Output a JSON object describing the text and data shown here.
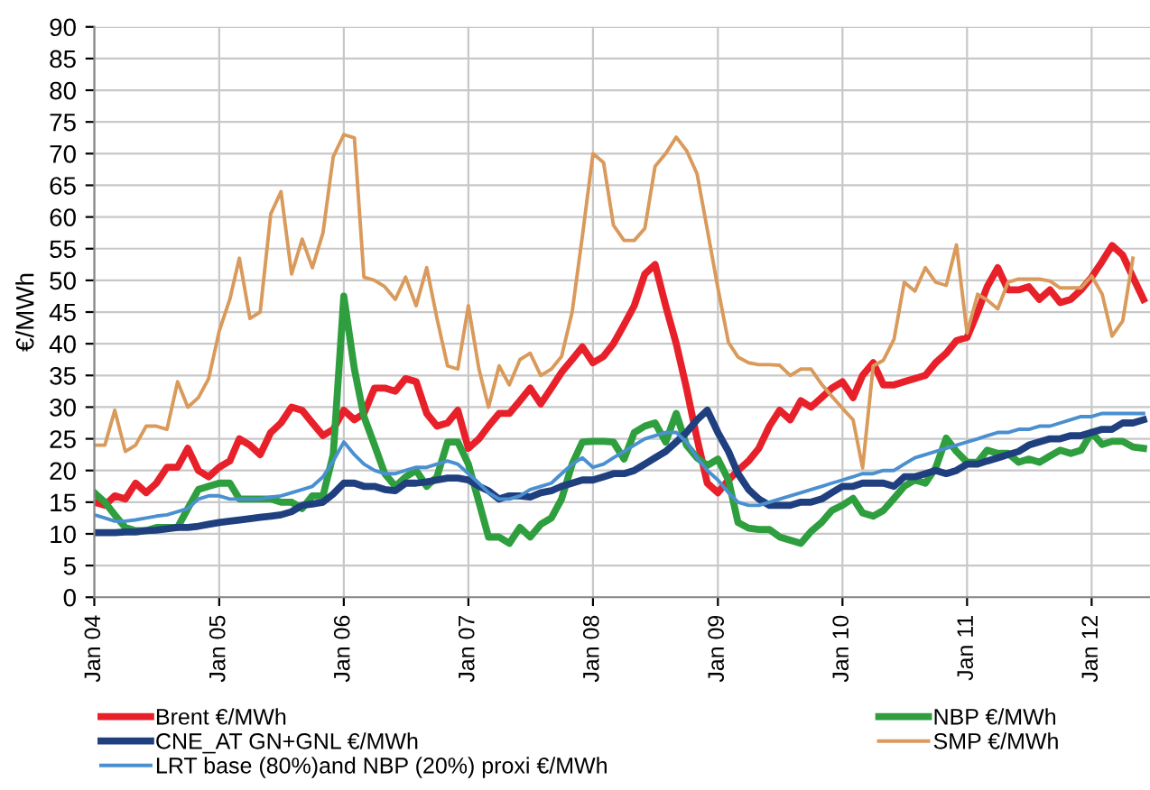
{
  "chart_data": {
    "type": "line",
    "ylabel": "€/MWh",
    "x": [
      "2004-01",
      "2004-02",
      "2004-03",
      "2004-04",
      "2004-05",
      "2004-06",
      "2004-07",
      "2004-08",
      "2004-09",
      "2004-10",
      "2004-11",
      "2004-12",
      "2005-01",
      "2005-02",
      "2005-03",
      "2005-04",
      "2005-05",
      "2005-06",
      "2005-07",
      "2005-08",
      "2005-09",
      "2005-10",
      "2005-11",
      "2005-12",
      "2006-01",
      "2006-02",
      "2006-03",
      "2006-04",
      "2006-05",
      "2006-06",
      "2006-07",
      "2006-08",
      "2006-09",
      "2006-10",
      "2006-11",
      "2006-12",
      "2007-01",
      "2007-02",
      "2007-03",
      "2007-04",
      "2007-05",
      "2007-06",
      "2007-07",
      "2007-08",
      "2007-09",
      "2007-10",
      "2007-11",
      "2007-12",
      "2008-01",
      "2008-02",
      "2008-03",
      "2008-04",
      "2008-05",
      "2008-06",
      "2008-07",
      "2008-08",
      "2008-09",
      "2008-10",
      "2008-11",
      "2008-12",
      "2009-01",
      "2009-02",
      "2009-03",
      "2009-04",
      "2009-05",
      "2009-06",
      "2009-07",
      "2009-08",
      "2009-09",
      "2009-10",
      "2009-11",
      "2009-12",
      "2010-01",
      "2010-02",
      "2010-03",
      "2010-04",
      "2010-05",
      "2010-06",
      "2010-07",
      "2010-08",
      "2010-09",
      "2010-10",
      "2010-11",
      "2010-12",
      "2011-01",
      "2011-02",
      "2011-03",
      "2011-04",
      "2011-05",
      "2011-06",
      "2011-07",
      "2011-08",
      "2011-09",
      "2011-10",
      "2011-11",
      "2011-12",
      "2012-01",
      "2012-02",
      "2012-03",
      "2012-04",
      "2012-05",
      "2012-06"
    ],
    "series": [
      {
        "name": "Brent €/MWh",
        "color": "#e8202a",
        "values": [
          15,
          14.5,
          16,
          15.5,
          18,
          16.5,
          18,
          20.5,
          20.5,
          23.5,
          20,
          19,
          20.5,
          21.5,
          25,
          24,
          22.5,
          26,
          27.5,
          30,
          29.5,
          27.5,
          25.5,
          26.5,
          29.5,
          28,
          29,
          33,
          33,
          32.5,
          34.5,
          34,
          29,
          27,
          27.5,
          29.5,
          23.5,
          25,
          27,
          29,
          29,
          31,
          33,
          30.5,
          33,
          35.5,
          37.5,
          39.5,
          37,
          38,
          40,
          43,
          46,
          51,
          52.5,
          46,
          40,
          33,
          25,
          18,
          16.5,
          18.5,
          20,
          21.5,
          23.5,
          27,
          29.5,
          28,
          31,
          30,
          31.5,
          33,
          34,
          31.5,
          35,
          37,
          33.5,
          33.5,
          34,
          34.5,
          35,
          37,
          38.5,
          40.5,
          41,
          45,
          49,
          52,
          48.5,
          48.5,
          49,
          47,
          48.5,
          46.5,
          47,
          48.5,
          50.5,
          53,
          55.5,
          54,
          50.5,
          47
        ]
      },
      {
        "name": "NBP €/MWh",
        "color": "#2e9e3e",
        "values": [
          16.5,
          15,
          13,
          11,
          10.5,
          10.5,
          11,
          11,
          11,
          14,
          17,
          17.5,
          18,
          18,
          15.5,
          15.5,
          15.5,
          15.5,
          15,
          15,
          14,
          16,
          16,
          22.5,
          47.5,
          36,
          28.5,
          24,
          19.5,
          17.5,
          19,
          20,
          17.5,
          19,
          24.5,
          24.5,
          21,
          15,
          9.5,
          9.5,
          8.5,
          11,
          9.5,
          11.5,
          12.5,
          15.5,
          21,
          24.5,
          24.6,
          24.6,
          24.5,
          21.8,
          26,
          27,
          27.5,
          24.5,
          29,
          24,
          22,
          20.8,
          21.8,
          18.5,
          11.8,
          10.9,
          10.7,
          10.7,
          9.5,
          9,
          8.5,
          10.4,
          11.8,
          13.7,
          14.5,
          15.6,
          13.3,
          12.8,
          13.7,
          15.6,
          17.5,
          18.5,
          18,
          20.4,
          25.1,
          23,
          21.3,
          21.3,
          23.2,
          22.7,
          22.7,
          21.3,
          21.8,
          21.3,
          22.3,
          23.2,
          22.7,
          23.2,
          26,
          24.1,
          24.6,
          24.6,
          23.7,
          23.5
        ]
      },
      {
        "name": "CNE_AT GN+GNL €/MWh",
        "color": "#1f3f7f",
        "values": [
          10.2,
          10.2,
          10.2,
          10.3,
          10.3,
          10.5,
          10.6,
          10.8,
          11,
          11,
          11.2,
          11.5,
          11.8,
          12,
          12.2,
          12.4,
          12.6,
          12.8,
          13,
          13.5,
          14.5,
          14.7,
          15,
          16.3,
          18,
          18,
          17.5,
          17.5,
          17,
          16.8,
          18,
          18,
          18.2,
          18.5,
          18.8,
          18.8,
          18.5,
          17.5,
          16.8,
          15.5,
          16,
          16,
          15.8,
          16.5,
          16.8,
          17.5,
          18,
          18.5,
          18.5,
          19,
          19.5,
          19.5,
          20,
          21,
          22,
          23,
          24.5,
          26,
          28,
          29.5,
          26,
          23,
          19.5,
          17,
          15.5,
          14.5,
          14.5,
          14.5,
          15,
          15,
          15.5,
          16.5,
          17.5,
          17.5,
          18,
          18,
          18,
          17.5,
          19,
          19,
          19.5,
          20,
          19.5,
          20,
          21,
          21,
          21.5,
          22,
          22.5,
          23,
          24,
          24.5,
          25,
          25,
          25.5,
          25.5,
          26,
          26.5,
          26.5,
          27.5,
          27.5,
          28
        ]
      },
      {
        "name": "SMP €/MWh",
        "color": "#d99a5b",
        "values": [
          24,
          24,
          29.5,
          23,
          24,
          27,
          27,
          26.5,
          34,
          30,
          31.5,
          34.5,
          42,
          47,
          53.5,
          44,
          45,
          60.5,
          64,
          51,
          56.5,
          52,
          57.5,
          69.5,
          73,
          72.5,
          50.5,
          50,
          49,
          47,
          50.5,
          46,
          52,
          44,
          36.5,
          36,
          46,
          36,
          30,
          36.5,
          33.5,
          37.5,
          38.5,
          35,
          36,
          38,
          45,
          57,
          70,
          68.6,
          58.7,
          56.3,
          56.3,
          58.2,
          68,
          70,
          72.6,
          70.5,
          66.8,
          58,
          48.8,
          40.2,
          37.9,
          37,
          36.7,
          36.7,
          36.6,
          35,
          36,
          36,
          33.6,
          31.7,
          29.8,
          28,
          20.4,
          36.5,
          37.4,
          40.7,
          49.7,
          48.3,
          52,
          49.7,
          49.2,
          55.6,
          41.7,
          47.8,
          46.9,
          45.5,
          49.7,
          50.2,
          50.2,
          50.2,
          49.9,
          48.8,
          48.8,
          48.8,
          50.7,
          47.8,
          41.2,
          43.6,
          53.5,
          null
        ]
      },
      {
        "name": "LRT base (80%)and NBP (20%) proxi €/MWh",
        "color": "#4a90d0",
        "values": [
          13,
          12.5,
          12,
          12,
          12.2,
          12.5,
          12.8,
          13,
          13.5,
          14,
          15.5,
          16,
          16,
          15.5,
          15.5,
          15.5,
          15.5,
          15.8,
          16,
          16.5,
          17,
          17.5,
          19,
          21.5,
          24.5,
          22.5,
          21,
          20,
          19.5,
          19.5,
          20,
          20.5,
          20.5,
          21,
          21.5,
          21,
          19.5,
          18,
          16.5,
          15.5,
          15.5,
          16,
          17,
          17.5,
          18,
          19.5,
          21,
          22,
          20.5,
          21,
          22,
          23,
          24,
          25,
          25.5,
          26,
          26,
          24.5,
          22,
          20,
          18.5,
          16.5,
          15,
          14.5,
          14.5,
          15,
          15.5,
          16,
          16.5,
          17,
          17.5,
          18,
          18.5,
          19,
          19.5,
          19.5,
          20,
          20,
          21,
          22,
          22.5,
          23,
          23.5,
          24,
          24.5,
          25,
          25.5,
          26,
          26,
          26.5,
          26.5,
          27,
          27,
          27.5,
          28,
          28.5,
          28.5,
          29,
          29,
          29,
          29,
          29
        ]
      }
    ],
    "xlim": [
      "2004-01",
      "2012-06-20"
    ],
    "xticks": [
      {
        "value": "2004-01",
        "label": "Jan 04"
      },
      {
        "value": "2005-01",
        "label": "Jan 05"
      },
      {
        "value": "2006-01",
        "label": "Jan 06"
      },
      {
        "value": "2007-01",
        "label": "Jan 07"
      },
      {
        "value": "2008-01",
        "label": "Jan 08"
      },
      {
        "value": "2009-01",
        "label": "Jan 09"
      },
      {
        "value": "2010-01",
        "label": "Jan 10"
      },
      {
        "value": "2011-01",
        "label": "Jan 11"
      },
      {
        "value": "2012-01",
        "label": "Jan 12"
      }
    ],
    "ylim": [
      0,
      90
    ],
    "yticks": [
      0,
      5,
      10,
      15,
      20,
      25,
      30,
      35,
      40,
      45,
      50,
      55,
      60,
      65,
      70,
      75,
      80,
      85,
      90
    ],
    "grid": true,
    "legend": "bottom",
    "marker": "none",
    "line_style": "solid"
  }
}
